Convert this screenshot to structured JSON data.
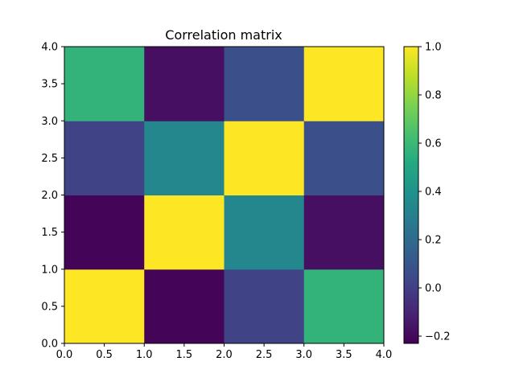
{
  "chart_data": {
    "type": "heatmap",
    "title": "Correlation matrix",
    "xlabel": "",
    "ylabel": "",
    "xlim": [
      0.0,
      4.0
    ],
    "ylim": [
      0.0,
      4.0
    ],
    "x_ticks": [
      "0.0",
      "0.5",
      "1.0",
      "1.5",
      "2.0",
      "2.5",
      "3.0",
      "3.5",
      "4.0"
    ],
    "y_ticks": [
      "0.0",
      "0.5",
      "1.0",
      "1.5",
      "2.0",
      "2.5",
      "3.0",
      "3.5",
      "4.0"
    ],
    "rows_bottom_to_top": [
      [
        1.0,
        -0.22,
        0.02,
        0.57
      ],
      [
        -0.22,
        1.0,
        0.34,
        -0.18
      ],
      [
        0.02,
        0.34,
        1.0,
        0.07
      ],
      [
        0.57,
        -0.18,
        0.07,
        1.0
      ]
    ],
    "colorbar": {
      "min": -0.23,
      "max": 1.0,
      "ticks": [
        "−0.2",
        "0.0",
        "0.2",
        "0.4",
        "0.6",
        "0.8",
        "1.0"
      ],
      "tick_values": [
        -0.2,
        0.0,
        0.2,
        0.4,
        0.6,
        0.8,
        1.0
      ]
    },
    "colormap": "viridis",
    "grid": false
  }
}
